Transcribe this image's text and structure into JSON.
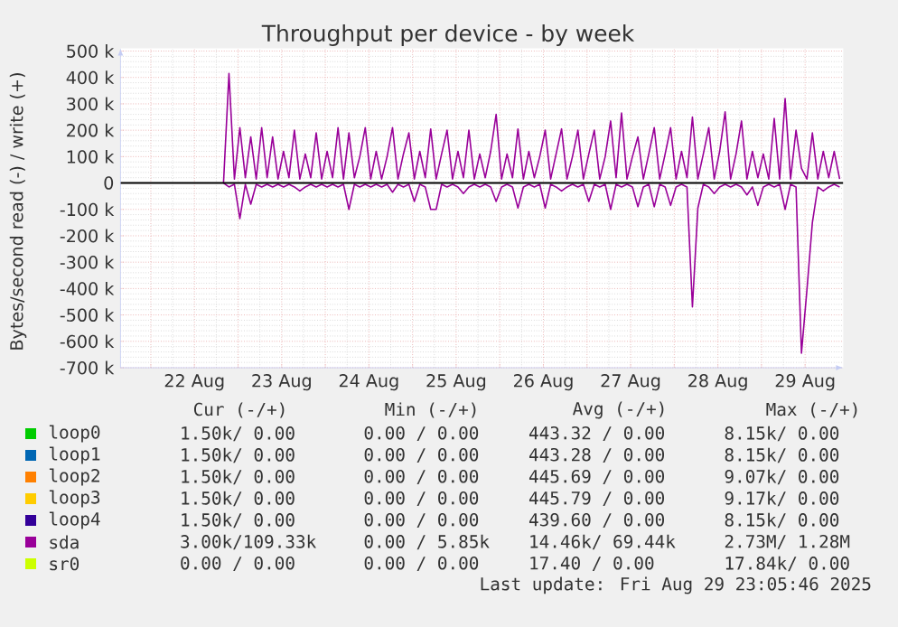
{
  "chart_data": {
    "type": "line",
    "title": "Throughput per device - by week",
    "ylabel": "Bytes/second read (-) / write (+)",
    "xlim": [
      "2025-08-21T15:40",
      "2025-08-29T22:30"
    ],
    "xticks": [
      {
        "value": "2025-08-22T00:00",
        "label": null
      },
      {
        "value": "2025-08-22T12:00",
        "label": "22 Aug"
      },
      {
        "value": "2025-08-23T00:00",
        "label": null
      },
      {
        "value": "2025-08-23T12:00",
        "label": "23 Aug"
      },
      {
        "value": "2025-08-24T00:00",
        "label": null
      },
      {
        "value": "2025-08-24T12:00",
        "label": "24 Aug"
      },
      {
        "value": "2025-08-25T00:00",
        "label": null
      },
      {
        "value": "2025-08-25T12:00",
        "label": "25 Aug"
      },
      {
        "value": "2025-08-26T00:00",
        "label": null
      },
      {
        "value": "2025-08-26T12:00",
        "label": "26 Aug"
      },
      {
        "value": "2025-08-27T00:00",
        "label": null
      },
      {
        "value": "2025-08-27T12:00",
        "label": "27 Aug"
      },
      {
        "value": "2025-08-28T00:00",
        "label": null
      },
      {
        "value": "2025-08-28T12:00",
        "label": "28 Aug"
      },
      {
        "value": "2025-08-29T00:00",
        "label": null
      },
      {
        "value": "2025-08-29T12:00",
        "label": "29 Aug"
      }
    ],
    "ylim": [
      -700000,
      510000
    ],
    "yticks": [
      {
        "value": -700000,
        "label": "-700 k"
      },
      {
        "value": -600000,
        "label": "-600 k"
      },
      {
        "value": -500000,
        "label": "-500 k"
      },
      {
        "value": -400000,
        "label": "-400 k"
      },
      {
        "value": -300000,
        "label": "-300 k"
      },
      {
        "value": -200000,
        "label": "-200 k"
      },
      {
        "value": -100000,
        "label": "-100 k"
      },
      0,
      {
        "value": 100000,
        "label": "100 k"
      },
      {
        "value": 200000,
        "label": "200 k"
      },
      {
        "value": 300000,
        "label": "300 k"
      },
      {
        "value": 400000,
        "label": "400 k"
      },
      {
        "value": 500000,
        "label": "500 k"
      }
    ],
    "grid": true,
    "legend": "bottom",
    "x": [
      "2025-08-22T20:00",
      "2025-08-22T21:30",
      "2025-08-22T23:00",
      "2025-08-23T00:30",
      "2025-08-23T02:00",
      "2025-08-23T03:30",
      "2025-08-23T05:00",
      "2025-08-23T06:30",
      "2025-08-23T08:00",
      "2025-08-23T09:30",
      "2025-08-23T11:00",
      "2025-08-23T12:30",
      "2025-08-23T14:00",
      "2025-08-23T15:30",
      "2025-08-23T17:00",
      "2025-08-23T18:30",
      "2025-08-23T20:00",
      "2025-08-23T21:30",
      "2025-08-23T23:00",
      "2025-08-24T00:30",
      "2025-08-24T02:00",
      "2025-08-24T03:30",
      "2025-08-24T05:00",
      "2025-08-24T06:30",
      "2025-08-24T08:00",
      "2025-08-24T09:30",
      "2025-08-24T11:00",
      "2025-08-24T12:30",
      "2025-08-24T14:00",
      "2025-08-24T15:30",
      "2025-08-24T17:00",
      "2025-08-24T18:30",
      "2025-08-24T20:00",
      "2025-08-24T21:30",
      "2025-08-24T23:00",
      "2025-08-25T00:30",
      "2025-08-25T02:00",
      "2025-08-25T03:30",
      "2025-08-25T05:00",
      "2025-08-25T06:30",
      "2025-08-25T08:00",
      "2025-08-25T09:30",
      "2025-08-25T11:00",
      "2025-08-25T12:30",
      "2025-08-25T14:00",
      "2025-08-25T15:30",
      "2025-08-25T17:00",
      "2025-08-25T18:30",
      "2025-08-25T20:00",
      "2025-08-25T21:30",
      "2025-08-25T23:00",
      "2025-08-26T00:30",
      "2025-08-26T02:00",
      "2025-08-26T03:30",
      "2025-08-26T05:00",
      "2025-08-26T06:30",
      "2025-08-26T08:00",
      "2025-08-26T09:30",
      "2025-08-26T11:00",
      "2025-08-26T12:30",
      "2025-08-26T14:00",
      "2025-08-26T15:30",
      "2025-08-26T17:00",
      "2025-08-26T18:30",
      "2025-08-26T20:00",
      "2025-08-26T21:30",
      "2025-08-26T23:00",
      "2025-08-27T00:30",
      "2025-08-27T02:00",
      "2025-08-27T03:30",
      "2025-08-27T05:00",
      "2025-08-27T06:30",
      "2025-08-27T08:00",
      "2025-08-27T09:30",
      "2025-08-27T11:00",
      "2025-08-27T12:30",
      "2025-08-27T14:00",
      "2025-08-27T15:30",
      "2025-08-27T17:00",
      "2025-08-27T18:30",
      "2025-08-27T20:00",
      "2025-08-27T21:30",
      "2025-08-27T23:00",
      "2025-08-28T00:30",
      "2025-08-28T02:00",
      "2025-08-28T03:30",
      "2025-08-28T05:00",
      "2025-08-28T06:30",
      "2025-08-28T08:00",
      "2025-08-28T09:30",
      "2025-08-28T11:00",
      "2025-08-28T12:30",
      "2025-08-28T14:00",
      "2025-08-28T15:30",
      "2025-08-28T17:00",
      "2025-08-28T18:30",
      "2025-08-28T20:00",
      "2025-08-28T21:30",
      "2025-08-28T23:00",
      "2025-08-29T00:30",
      "2025-08-29T02:00",
      "2025-08-29T03:30",
      "2025-08-29T05:00",
      "2025-08-29T06:30",
      "2025-08-29T08:00",
      "2025-08-29T09:30",
      "2025-08-29T11:00",
      "2025-08-29T12:30",
      "2025-08-29T14:00",
      "2025-08-29T15:30",
      "2025-08-29T17:00",
      "2025-08-29T18:30",
      "2025-08-29T20:00",
      "2025-08-29T21:30"
    ],
    "series": [
      {
        "name": "loop0",
        "color": "#00cc00",
        "values": [
          null,
          null,
          null,
          null,
          null,
          null,
          null,
          null,
          null,
          null,
          null,
          null,
          null,
          null,
          null,
          null,
          null,
          null,
          null,
          null,
          null,
          null,
          null,
          null,
          null,
          null,
          null,
          null,
          null,
          null,
          null,
          null,
          null,
          null,
          null,
          null,
          null,
          null,
          null,
          null,
          null,
          null,
          null,
          null,
          null,
          null,
          null,
          null,
          null,
          null,
          null,
          null,
          null,
          null,
          null,
          null,
          null,
          null,
          null,
          null,
          null,
          null,
          null,
          null,
          null,
          null,
          null,
          null,
          null,
          null,
          null,
          null,
          null,
          null,
          null,
          null,
          null,
          null,
          null,
          null,
          null,
          null,
          null,
          null,
          null,
          null,
          null,
          null,
          null,
          null,
          null,
          null,
          null,
          null,
          null,
          null,
          null,
          null,
          null,
          null,
          null,
          null,
          null,
          null,
          null,
          null,
          null,
          null,
          null,
          null,
          null,
          null,
          null,
          null
        ]
      },
      {
        "name": "loop1",
        "color": "#0066b3",
        "values": [
          null,
          null,
          null,
          null,
          null,
          null,
          null,
          null,
          null,
          null,
          null,
          null,
          null,
          null,
          null,
          null,
          null,
          null,
          null,
          null,
          null,
          null,
          null,
          null,
          null,
          null,
          null,
          null,
          null,
          null,
          null,
          null,
          null,
          null,
          null,
          null,
          null,
          null,
          null,
          null,
          null,
          null,
          null,
          null,
          null,
          null,
          null,
          null,
          null,
          null,
          null,
          null,
          null,
          null,
          null,
          null,
          null,
          null,
          null,
          null,
          null,
          null,
          null,
          null,
          null,
          null,
          null,
          null,
          null,
          null,
          null,
          null,
          null,
          null,
          null,
          null,
          null,
          null,
          null,
          null,
          null,
          null,
          null,
          null,
          null,
          null,
          null,
          null,
          null,
          null,
          null,
          null,
          null,
          null,
          null,
          null,
          null,
          null,
          null,
          null,
          null,
          null,
          null,
          null,
          null,
          null,
          null,
          null,
          null,
          null,
          null,
          null,
          null,
          null
        ]
      },
      {
        "name": "loop2",
        "color": "#ff8000",
        "values": [
          null,
          null,
          null,
          null,
          null,
          null,
          null,
          null,
          null,
          null,
          null,
          null,
          null,
          null,
          null,
          null,
          null,
          null,
          null,
          null,
          null,
          null,
          null,
          null,
          null,
          null,
          null,
          null,
          null,
          null,
          null,
          null,
          null,
          null,
          null,
          null,
          null,
          null,
          null,
          null,
          null,
          null,
          null,
          null,
          null,
          null,
          null,
          null,
          null,
          null,
          null,
          null,
          null,
          null,
          null,
          null,
          null,
          null,
          null,
          null,
          null,
          null,
          null,
          null,
          null,
          null,
          null,
          null,
          null,
          null,
          null,
          null,
          null,
          null,
          null,
          null,
          null,
          null,
          null,
          null,
          null,
          null,
          null,
          null,
          null,
          null,
          null,
          null,
          null,
          null,
          null,
          null,
          null,
          null,
          null,
          null,
          null,
          null,
          null,
          null,
          null,
          null,
          null,
          null,
          null,
          null,
          null,
          null,
          null,
          null,
          null,
          null,
          null,
          null
        ]
      },
      {
        "name": "loop3",
        "color": "#ffcc00",
        "values": [
          null,
          null,
          null,
          null,
          null,
          null,
          null,
          null,
          null,
          null,
          null,
          null,
          null,
          null,
          null,
          null,
          null,
          null,
          null,
          null,
          null,
          null,
          null,
          null,
          null,
          null,
          null,
          null,
          null,
          null,
          null,
          null,
          null,
          null,
          null,
          null,
          null,
          null,
          null,
          null,
          null,
          null,
          null,
          null,
          null,
          null,
          null,
          null,
          null,
          null,
          null,
          null,
          null,
          null,
          null,
          null,
          null,
          null,
          null,
          null,
          null,
          null,
          null,
          null,
          null,
          null,
          null,
          null,
          null,
          null,
          null,
          null,
          null,
          null,
          null,
          null,
          null,
          null,
          null,
          null,
          null,
          null,
          null,
          null,
          null,
          null,
          null,
          null,
          null,
          null,
          null,
          null,
          null,
          null,
          null,
          null,
          null,
          null,
          null,
          null,
          null,
          null,
          null,
          null,
          null,
          null,
          null,
          null,
          null,
          null,
          null,
          null,
          null,
          null
        ]
      },
      {
        "name": "loop4",
        "color": "#330099",
        "values": [
          null,
          null,
          null,
          null,
          null,
          null,
          null,
          null,
          null,
          null,
          null,
          null,
          null,
          null,
          null,
          null,
          null,
          null,
          null,
          null,
          null,
          null,
          null,
          null,
          null,
          null,
          null,
          null,
          null,
          null,
          null,
          null,
          null,
          null,
          null,
          null,
          null,
          null,
          null,
          null,
          null,
          null,
          null,
          null,
          null,
          null,
          null,
          null,
          null,
          null,
          null,
          null,
          null,
          null,
          null,
          null,
          null,
          null,
          null,
          null,
          null,
          null,
          null,
          null,
          null,
          null,
          null,
          null,
          null,
          null,
          null,
          null,
          null,
          null,
          null,
          null,
          null,
          null,
          null,
          null,
          null,
          null,
          null,
          null,
          null,
          null,
          null,
          null,
          null,
          null,
          null,
          null,
          null,
          null,
          null,
          null,
          null,
          null,
          null,
          null,
          null,
          null,
          null,
          null,
          null,
          null,
          null,
          null,
          null,
          null,
          null,
          null,
          null,
          null
        ]
      },
      {
        "name": "sda",
        "color": "#990099",
        "values": [
          0,
          415000,
          15000,
          210000,
          20000,
          175000,
          15000,
          210000,
          20000,
          175000,
          15000,
          120000,
          20000,
          200000,
          15000,
          110000,
          20000,
          190000,
          15000,
          120000,
          20000,
          210000,
          15000,
          190000,
          20000,
          100000,
          210000,
          15000,
          120000,
          15000,
          100000,
          210000,
          15000,
          110000,
          190000,
          15000,
          120000,
          20000,
          205000,
          15000,
          110000,
          200000,
          15000,
          120000,
          20000,
          200000,
          15000,
          110000,
          20000,
          120000,
          260000,
          15000,
          110000,
          20000,
          205000,
          15000,
          120000,
          20000,
          100000,
          200000,
          15000,
          110000,
          205000,
          15000,
          100000,
          200000,
          15000,
          110000,
          200000,
          15000,
          100000,
          235000,
          20000,
          265000,
          15000,
          100000,
          175000,
          15000,
          110000,
          210000,
          15000,
          110000,
          210000,
          15000,
          120000,
          20000,
          250000,
          15000,
          110000,
          210000,
          15000,
          120000,
          270000,
          15000,
          110000,
          235000,
          15000,
          120000,
          20000,
          110000,
          15000,
          245000,
          15000,
          320000,
          15000,
          200000,
          55000,
          15000,
          190000,
          15000,
          120000,
          20000,
          120000,
          15000
        ]
      },
      {
        "color": "#990099",
        "values": [
          0,
          -15000,
          -5000,
          -135000,
          -5000,
          -80000,
          -5000,
          -15000,
          -5000,
          -15000,
          -5000,
          -15000,
          -5000,
          -15000,
          -30000,
          -15000,
          -5000,
          -15000,
          -5000,
          -15000,
          -5000,
          -15000,
          -5000,
          -100000,
          -5000,
          -15000,
          -5000,
          -15000,
          -5000,
          -15000,
          -5000,
          -35000,
          -5000,
          -15000,
          -5000,
          -70000,
          -5000,
          -15000,
          -100000,
          -100000,
          -5000,
          -15000,
          -5000,
          -15000,
          -40000,
          -15000,
          -5000,
          -15000,
          -5000,
          -15000,
          -70000,
          -15000,
          -5000,
          -15000,
          -95000,
          -15000,
          -5000,
          -15000,
          -5000,
          -95000,
          -5000,
          -15000,
          -30000,
          -15000,
          -5000,
          -15000,
          -5000,
          -70000,
          -5000,
          -15000,
          -5000,
          -100000,
          -5000,
          -15000,
          -5000,
          -15000,
          -90000,
          -15000,
          -5000,
          -90000,
          -5000,
          -15000,
          -85000,
          -15000,
          -5000,
          -15000,
          -470000,
          -95000,
          -5000,
          -15000,
          -40000,
          -15000,
          -5000,
          -15000,
          -5000,
          -15000,
          -45000,
          -15000,
          -85000,
          -15000,
          -5000,
          -15000,
          -5000,
          -100000,
          -5000,
          -15000,
          -645000,
          -405000,
          -150000,
          -15000,
          -30000,
          -15000,
          -5000,
          -15000
        ]
      },
      {
        "name": "sr0",
        "color": "#ccff00",
        "values": [
          null,
          null,
          null,
          null,
          null,
          null,
          null,
          null,
          null,
          null,
          null,
          null,
          null,
          null,
          null,
          null,
          null,
          null,
          null,
          null,
          null,
          null,
          null,
          null,
          null,
          null,
          null,
          null,
          null,
          null,
          null,
          null,
          null,
          null,
          null,
          null,
          null,
          null,
          null,
          null,
          null,
          null,
          null,
          null,
          null,
          null,
          null,
          null,
          null,
          null,
          null,
          null,
          null,
          null,
          null,
          null,
          null,
          null,
          null,
          null,
          null,
          null,
          null,
          null,
          null,
          null,
          null,
          null,
          null,
          null,
          null,
          null,
          null,
          null,
          null,
          null,
          null,
          null,
          null,
          null,
          null,
          null,
          null,
          null,
          null,
          null,
          null,
          null,
          null,
          null,
          null,
          null,
          null,
          null,
          null,
          null,
          null,
          null,
          null,
          null,
          null,
          null,
          null,
          null,
          null,
          null,
          null,
          null,
          null,
          null,
          null,
          null,
          null,
          null
        ]
      }
    ],
    "ref_lines": [
      {
        "axis": "y",
        "value": 0,
        "color": "#000000"
      }
    ],
    "annotations": [
      "Cur (-/+)",
      "Min (-/+)",
      "Avg (-/+)",
      "Max (-/+)",
      "1.50k/  0.00",
      "0.00 /  0.00",
      "443.32 /  0.00",
      "8.15k/  0.00",
      "1.50k/  0.00",
      "0.00 /  0.00",
      "443.28 /  0.00",
      "8.15k/  0.00",
      "1.50k/  0.00",
      "0.00 /  0.00",
      "445.69 /  0.00",
      "9.07k/  0.00",
      "1.50k/  0.00",
      "0.00 /  0.00",
      "445.79 /  0.00",
      "9.17k/  0.00",
      "1.50k/  0.00",
      "0.00 /  0.00",
      "439.60 /  0.00",
      "8.15k/  0.00",
      "3.00k/109.33k",
      "0.00 /  5.85k",
      "14.46k/ 69.44k",
      "2.73M/  1.28M",
      "0.00 /  0.00",
      "0.00 /  0.00",
      "17.40 /  0.00",
      "17.84k/  0.00",
      "Last update: Fri Aug 29 23:05:46 2025"
    ]
  }
}
